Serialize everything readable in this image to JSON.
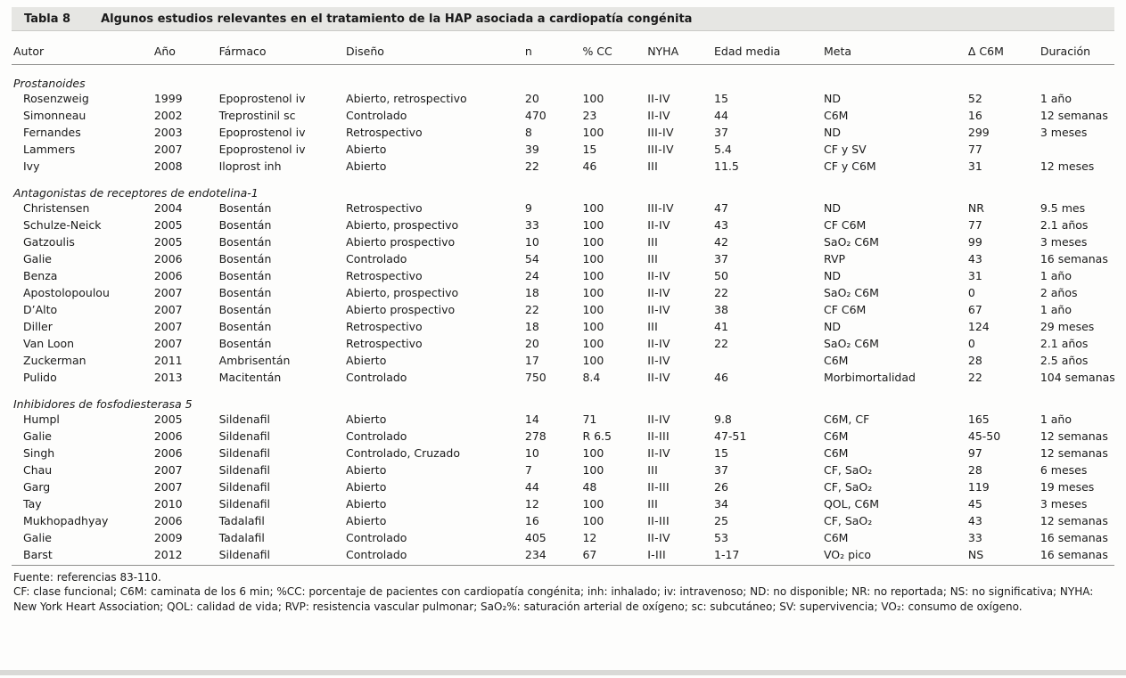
{
  "table": {
    "label": "Tabla 8",
    "title": "Algunos estudios relevantes en el tratamiento de la HAP asociada a cardiopatía congénita",
    "columns": [
      "Autor",
      "Año",
      "Fármaco",
      "Diseño",
      "n",
      "% CC",
      "NYHA",
      "Edad media",
      "Meta",
      "Δ C6M",
      "Duración"
    ],
    "column_keys": [
      "autor",
      "ano",
      "farmaco",
      "diseno",
      "n",
      "pct-cc",
      "nyha",
      "edad-media",
      "meta",
      "delta-c6m",
      "duracion"
    ],
    "sections": [
      {
        "name": "Prostanoides",
        "rows": [
          [
            "Rosenzweig",
            "1999",
            "Epoprostenol iv",
            "Abierto, retrospectivo",
            "20",
            "100",
            "II-IV",
            "15",
            "ND",
            "52",
            "1 año"
          ],
          [
            "Simonneau",
            "2002",
            "Treprostinil sc",
            "Controlado",
            "470",
            "23",
            "II-IV",
            "44",
            "C6M",
            "16",
            "12 semanas"
          ],
          [
            "Fernandes",
            "2003",
            "Epoprostenol iv",
            "Retrospectivo",
            "8",
            "100",
            "III-IV",
            "37",
            "ND",
            "299",
            "3 meses"
          ],
          [
            "Lammers",
            "2007",
            "Epoprostenol iv",
            "Abierto",
            "39",
            "15",
            "III-IV",
            "5.4",
            "CF y SV",
            "77",
            ""
          ],
          [
            "Ivy",
            "2008",
            "Iloprost inh",
            "Abierto",
            "22",
            "46",
            "III",
            "11.5",
            "CF y C6M",
            "31",
            "12 meses"
          ]
        ]
      },
      {
        "name": "Antagonistas de receptores de endotelina-1",
        "rows": [
          [
            "Christensen",
            "2004",
            "Bosentán",
            "Retrospectivo",
            "9",
            "100",
            "III-IV",
            "47",
            "ND",
            "NR",
            "9.5 mes"
          ],
          [
            "Schulze-Neick",
            "2005",
            "Bosentán",
            "Abierto, prospectivo",
            "33",
            "100",
            "II-IV",
            "43",
            "CF C6M",
            "77",
            "2.1 años"
          ],
          [
            "Gatzoulis",
            "2005",
            "Bosentán",
            "Abierto prospectivo",
            "10",
            "100",
            "III",
            "42",
            "SaO₂ C6M",
            "99",
            "3 meses"
          ],
          [
            "Galie",
            "2006",
            "Bosentán",
            "Controlado",
            "54",
            "100",
            "III",
            "37",
            "RVP",
            "43",
            "16 semanas"
          ],
          [
            "Benza",
            "2006",
            "Bosentán",
            "Retrospectivo",
            "24",
            "100",
            "II-IV",
            "50",
            "ND",
            "31",
            "1 año"
          ],
          [
            "Apostolopoulou",
            "2007",
            "Bosentán",
            "Abierto, prospectivo",
            "18",
            "100",
            "II-IV",
            "22",
            "SaO₂ C6M",
            "0",
            "2 años"
          ],
          [
            "D’Alto",
            "2007",
            "Bosentán",
            "Abierto prospectivo",
            "22",
            "100",
            "II-IV",
            "38",
            "CF C6M",
            "67",
            "1 año"
          ],
          [
            "Diller",
            "2007",
            "Bosentán",
            "Retrospectivo",
            "18",
            "100",
            "III",
            "41",
            "ND",
            "124",
            "29 meses"
          ],
          [
            "Van Loon",
            "2007",
            "Bosentán",
            "Retrospectivo",
            "20",
            "100",
            "II-IV",
            "22",
            "SaO₂ C6M",
            "0",
            "2.1 años"
          ],
          [
            "Zuckerman",
            "2011",
            "Ambrisentán",
            "Abierto",
            "17",
            "100",
            "II-IV",
            "",
            "C6M",
            "28",
            "2.5 años"
          ],
          [
            "Pulido",
            "2013",
            "Macitentán",
            "Controlado",
            "750",
            "8.4",
            "II-IV",
            "46",
            "Morbimortalidad",
            "22",
            "104 semanas"
          ]
        ]
      },
      {
        "name": "Inhibidores de fosfodiesterasa 5",
        "rows": [
          [
            "Humpl",
            "2005",
            "Sildenafil",
            "Abierto",
            "14",
            "71",
            "II-IV",
            "9.8",
            "C6M, CF",
            "165",
            "1 año"
          ],
          [
            "Galie",
            "2006",
            "Sildenafil",
            "Controlado",
            "278",
            "R 6.5",
            "II-III",
            "47-51",
            "C6M",
            "45-50",
            "12 semanas"
          ],
          [
            "Singh",
            "2006",
            "Sildenafil",
            "Controlado, Cruzado",
            "10",
            "100",
            "II-IV",
            "15",
            "C6M",
            "97",
            "12 semanas"
          ],
          [
            "Chau",
            "2007",
            "Sildenafil",
            "Abierto",
            "7",
            "100",
            "III",
            "37",
            "CF, SaO₂",
            "28",
            "6 meses"
          ],
          [
            "Garg",
            "2007",
            "Sildenafil",
            "Abierto",
            "44",
            "48",
            "II-III",
            "26",
            "CF, SaO₂",
            "119",
            "19 meses"
          ],
          [
            "Tay",
            "2010",
            "Sildenafil",
            "Abierto",
            "12",
            "100",
            "III",
            "34",
            "QOL, C6M",
            "45",
            "3 meses"
          ],
          [
            "Mukhopadhyay",
            "2006",
            "Tadalafil",
            "Abierto",
            "16",
            "100",
            "II-III",
            "25",
            "CF, SaO₂",
            "43",
            "12 semanas"
          ],
          [
            "Galie",
            "2009",
            "Tadalafil",
            "Controlado",
            "405",
            "12",
            "II-IV",
            "53",
            "C6M",
            "33",
            "16 semanas"
          ],
          [
            "Barst",
            "2012",
            "Sildenafil",
            "Controlado",
            "234",
            "67",
            "I-III",
            "1-17",
            "VO₂ pico",
            "NS",
            "16 semanas"
          ]
        ]
      }
    ],
    "footnotes": [
      "Fuente: referencias 83-110.",
      "CF: clase funcional; C6M: caminata de los 6 min; %CC: porcentaje de pacientes con cardiopatía congénita; inh: inhalado; iv: intravenoso; ND: no disponible; NR: no reportada; NS: no significativa; NYHA: New York Heart Association; QOL: calidad de vida; RVP: resistencia vascular pulmonar; SaO₂%: saturación arterial de oxígeno; sc: subcutáneo; SV: supervivencia; VO₂: consumo de oxígeno."
    ]
  }
}
